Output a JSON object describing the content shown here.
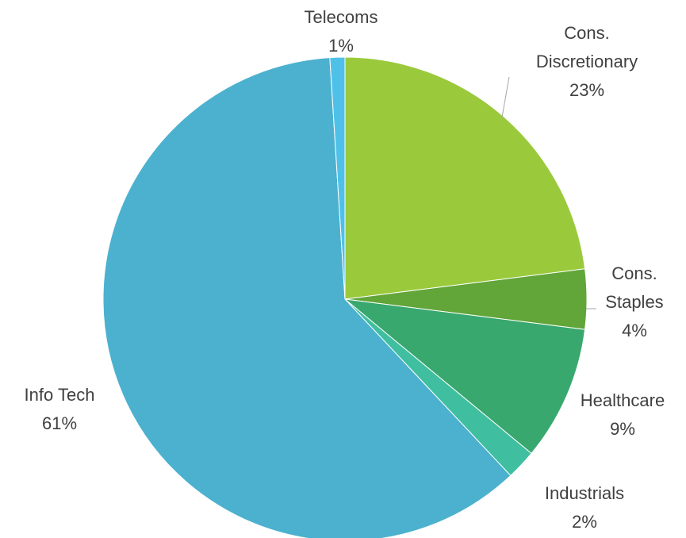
{
  "chart_data": {
    "type": "pie",
    "categories": [
      "Cons. Discretionary",
      "Cons. Staples",
      "Healthcare",
      "Industrials",
      "Info Tech",
      "Telecoms"
    ],
    "values": [
      23,
      4,
      9,
      2,
      61,
      1
    ],
    "value_labels": [
      "23%",
      "4%",
      "9%",
      "2%",
      "61%",
      "1%"
    ],
    "colors": [
      "#9aca3c",
      "#62a539",
      "#38a86f",
      "#3fbfa0",
      "#4bb1cf",
      "#4fc1e9"
    ]
  }
}
